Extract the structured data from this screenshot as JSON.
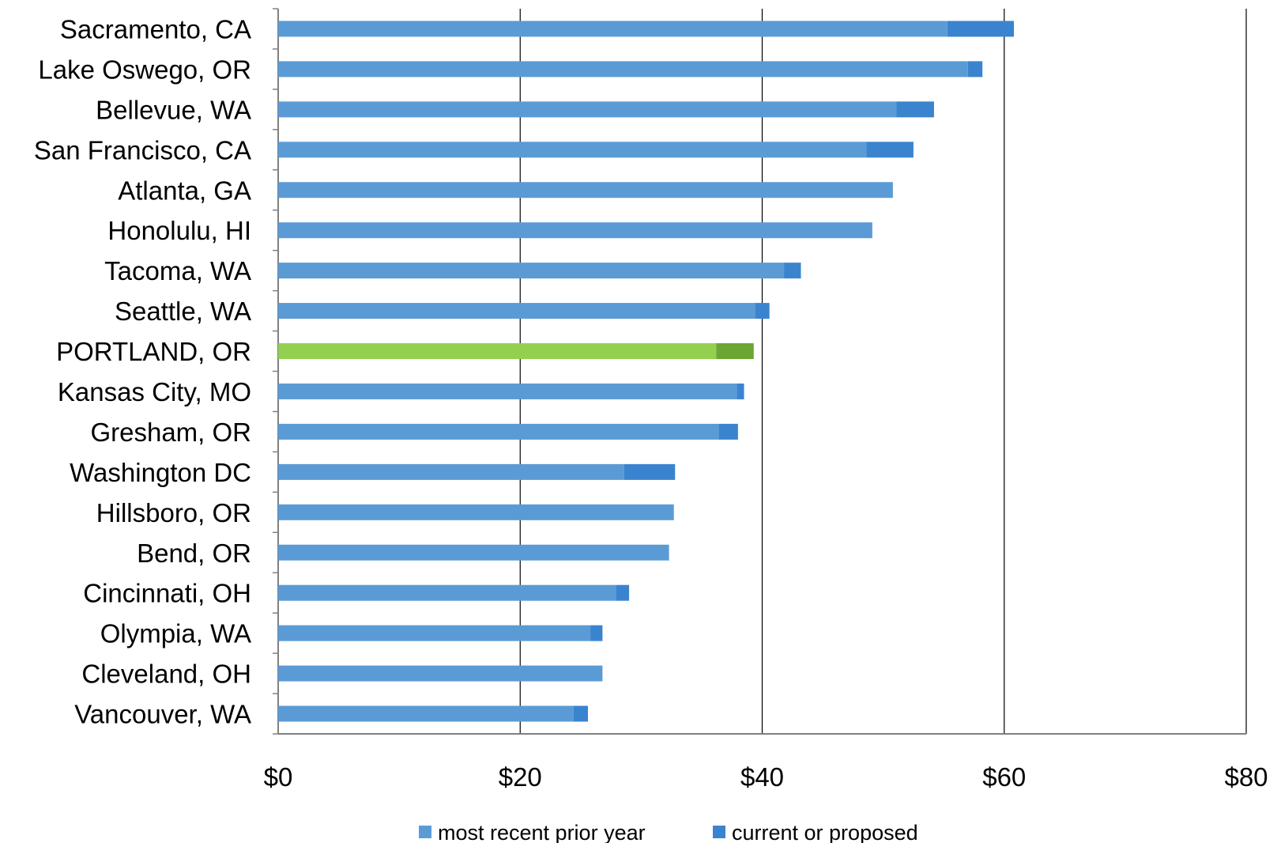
{
  "chart_data": {
    "type": "bar",
    "orientation": "horizontal",
    "stacked": true,
    "categories": [
      "Sacramento, CA",
      "Lake Oswego, OR",
      "Bellevue, WA",
      "San Francisco, CA",
      "Atlanta, GA",
      "Honolulu, HI",
      "Tacoma, WA",
      "Seattle, WA",
      "PORTLAND, OR",
      "Kansas City, MO",
      "Gresham, OR",
      "Washington DC",
      "Hillsboro, OR",
      "Bend, OR",
      "Cincinnati, OH",
      "Olympia, WA",
      "Cleveland, OH",
      "Vancouver, WA"
    ],
    "series": [
      {
        "name": "most recent prior year",
        "values": [
          55.3,
          57.0,
          51.1,
          48.6,
          50.8,
          49.1,
          41.8,
          39.4,
          36.2,
          37.9,
          36.4,
          28.6,
          32.7,
          32.3,
          27.9,
          25.8,
          26.8,
          24.4
        ]
      },
      {
        "name": "current or proposed",
        "values": [
          5.5,
          1.2,
          3.1,
          3.9,
          0,
          0,
          1.4,
          1.2,
          3.1,
          0.6,
          1.6,
          4.2,
          0,
          0,
          1.1,
          1.0,
          0,
          1.2
        ]
      }
    ],
    "highlight_category": "PORTLAND, OR",
    "xlim": [
      0,
      80
    ],
    "x_ticks": [
      0,
      20,
      40,
      60,
      80
    ],
    "x_tick_labels": [
      "$0",
      "$20",
      "$40",
      "$60",
      "$80"
    ],
    "grid": "vertical",
    "legend": "bottom",
    "colors": {
      "prior": "#5b9bd5",
      "current": "#3a84cf",
      "highlight_prior": "#92d050",
      "highlight_current": "#6aa632",
      "gridline": "#000000"
    }
  }
}
